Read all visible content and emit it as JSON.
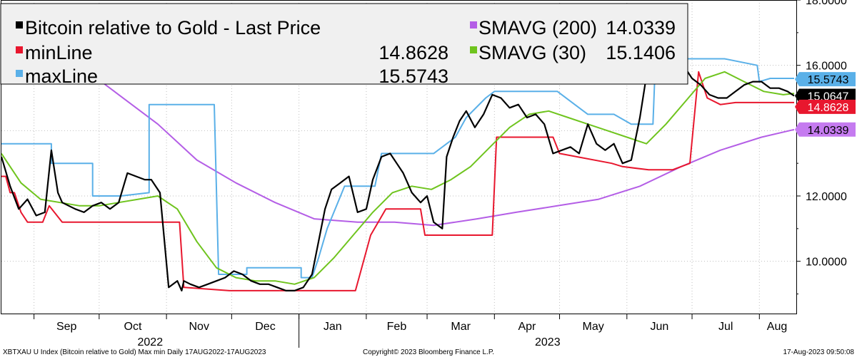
{
  "legend": {
    "items": [
      {
        "label": "Bitcoin relative to Gold - Last Price",
        "value": "",
        "color": "#000000"
      },
      {
        "label": "minLine",
        "value": "14.8628",
        "color": "#e8172e"
      },
      {
        "label": "maxLine",
        "value": "15.5743",
        "color": "#5ab0e8"
      },
      {
        "label": "SMAVG (200)",
        "value": "14.0339",
        "color": "#b45ee6"
      },
      {
        "label": "SMAVG (30)",
        "value": "15.1406",
        "color": "#6fc41e"
      }
    ]
  },
  "footer": {
    "left": "XBTXAU U Index (Bitcoin relative to Gold) Max min  Daily 17AUG2022-17AUG2023",
    "center": "Copyright© 2023 Bloomberg Finance L.P.",
    "right": "17-Aug-2023 09:50:08"
  },
  "chart_data": {
    "type": "line",
    "ylim": [
      8.4,
      18.0
    ],
    "y_ticks": [
      10,
      12,
      14,
      16,
      18
    ],
    "y_tick_labels": [
      "10.0000",
      "12.0000",
      "14.0000",
      "16.0000",
      "18.0000"
    ],
    "x_months": [
      "Sep",
      "Oct",
      "Nov",
      "Dec",
      "Jan",
      "Feb",
      "Mar",
      "Apr",
      "May",
      "Jun",
      "Jul",
      "Aug"
    ],
    "x_years": [
      "2022",
      "2023"
    ],
    "last_value_tags": [
      {
        "value": "15.5743",
        "level": 15.5743,
        "color": "#5ab0e8",
        "text_color": "#000000"
      },
      {
        "value": "15.0647",
        "level": 15.0647,
        "color": "#000000",
        "text_color": "#ffffff"
      },
      {
        "value": "14.8628",
        "level": 14.86,
        "color": "#e8172e",
        "text_color": "#ffffff"
      },
      {
        "value": "14.0339",
        "level": 14.0339,
        "color": "#c57bf0",
        "text_color": "#000000"
      }
    ],
    "grid": true,
    "grid_style": "dotted",
    "legend_position": "top-left",
    "series": [
      {
        "name": "Bitcoin relative to Gold - Last Price",
        "color": "#000000",
        "x": [
          "2022-08-17",
          "2022-08-21",
          "2022-08-25",
          "2022-08-29",
          "2022-09-02",
          "2022-09-06",
          "2022-09-09",
          "2022-09-12",
          "2022-09-14",
          "2022-09-17",
          "2022-09-20",
          "2022-09-24",
          "2022-09-28",
          "2022-10-02",
          "2022-10-06",
          "2022-10-10",
          "2022-10-14",
          "2022-10-18",
          "2022-10-22",
          "2022-10-25",
          "2022-10-29",
          "2022-11-02",
          "2022-11-06",
          "2022-11-08",
          "2022-11-09",
          "2022-11-12",
          "2022-11-16",
          "2022-11-20",
          "2022-11-24",
          "2022-11-28",
          "2022-12-02",
          "2022-12-06",
          "2022-12-10",
          "2022-12-14",
          "2022-12-18",
          "2022-12-22",
          "2022-12-26",
          "2022-12-30",
          "2023-01-03",
          "2023-01-07",
          "2023-01-10",
          "2023-01-13",
          "2023-01-16",
          "2023-01-20",
          "2023-01-24",
          "2023-01-28",
          "2023-02-01",
          "2023-02-04",
          "2023-02-08",
          "2023-02-12",
          "2023-02-15",
          "2023-02-18",
          "2023-02-22",
          "2023-02-26",
          "2023-03-01",
          "2023-03-04",
          "2023-03-08",
          "2023-03-10",
          "2023-03-13",
          "2023-03-16",
          "2023-03-19",
          "2023-03-23",
          "2023-03-27",
          "2023-03-31",
          "2023-04-04",
          "2023-04-08",
          "2023-04-12",
          "2023-04-16",
          "2023-04-20",
          "2023-04-24",
          "2023-04-28",
          "2023-05-02",
          "2023-05-06",
          "2023-05-10",
          "2023-05-14",
          "2023-05-18",
          "2023-05-22",
          "2023-05-26",
          "2023-05-30",
          "2023-06-03",
          "2023-06-07",
          "2023-06-11",
          "2023-06-15",
          "2023-06-19",
          "2023-06-23",
          "2023-06-27",
          "2023-07-01",
          "2023-07-05",
          "2023-07-09",
          "2023-07-13",
          "2023-07-17",
          "2023-07-21",
          "2023-07-25",
          "2023-07-29",
          "2023-08-02",
          "2023-08-06",
          "2023-08-10",
          "2023-08-14",
          "2023-08-17"
        ],
        "values": [
          13.2,
          12.3,
          11.6,
          11.9,
          11.4,
          11.5,
          13.4,
          12.1,
          11.8,
          11.7,
          11.6,
          11.5,
          11.7,
          11.8,
          11.6,
          11.8,
          12.7,
          12.6,
          12.5,
          12.5,
          12.1,
          9.2,
          9.4,
          9.1,
          9.4,
          9.3,
          9.2,
          9.3,
          9.4,
          9.5,
          9.7,
          9.6,
          9.4,
          9.3,
          9.3,
          9.2,
          9.1,
          9.1,
          9.2,
          9.6,
          10.6,
          11.6,
          12.2,
          12.4,
          12.6,
          11.5,
          11.6,
          12.5,
          13.2,
          13.3,
          13.0,
          12.7,
          12.1,
          11.8,
          12.0,
          11.2,
          11.0,
          13.2,
          13.8,
          14.3,
          14.6,
          14.1,
          14.5,
          15.1,
          15.0,
          14.7,
          14.8,
          14.4,
          14.5,
          14.2,
          13.3,
          13.4,
          13.5,
          13.3,
          14.2,
          13.6,
          13.4,
          13.6,
          13.0,
          13.1,
          14.4,
          16.1,
          15.8,
          15.9,
          16.1,
          16.0,
          15.6,
          15.4,
          15.1,
          15.0,
          15.0,
          15.2,
          15.4,
          15.5,
          15.5,
          15.3,
          15.3,
          15.2,
          15.0647
        ]
      },
      {
        "name": "minLine",
        "color": "#e8172e",
        "x": [
          "2022-08-17",
          "2022-08-19",
          "2022-08-21",
          "2022-08-23",
          "2022-08-26",
          "2022-08-29",
          "2022-09-05",
          "2022-09-08",
          "2022-09-14",
          "2022-09-22",
          "2022-10-21",
          "2022-11-01",
          "2022-11-07",
          "2022-11-09",
          "2022-11-30",
          "2022-12-31",
          "2023-01-27",
          "2023-02-03",
          "2023-02-10",
          "2023-02-22",
          "2023-02-26",
          "2023-02-28",
          "2023-03-10",
          "2023-03-31",
          "2023-04-02",
          "2023-04-28",
          "2023-05-01",
          "2023-05-25",
          "2023-05-30",
          "2023-06-11",
          "2023-06-22",
          "2023-06-30",
          "2023-07-04",
          "2023-07-08",
          "2023-07-14",
          "2023-07-21",
          "2023-08-17"
        ],
        "values": [
          12.6,
          12.6,
          12.1,
          12.1,
          11.5,
          11.2,
          11.2,
          11.7,
          11.2,
          11.2,
          11.2,
          11.2,
          11.2,
          9.2,
          9.1,
          9.1,
          9.1,
          10.8,
          11.6,
          11.6,
          11.6,
          10.8,
          10.8,
          10.8,
          13.8,
          13.8,
          13.3,
          13.0,
          12.9,
          12.8,
          12.8,
          13.0,
          15.8,
          15.0,
          14.8,
          14.86,
          14.86
        ]
      },
      {
        "name": "maxLine",
        "color": "#5ab0e8",
        "x": [
          "2022-08-17",
          "2022-09-09",
          "2022-09-09",
          "2022-09-28",
          "2022-09-28",
          "2022-10-11",
          "2022-10-24",
          "2022-10-24",
          "2022-11-23",
          "2022-11-25",
          "2022-11-25",
          "2022-12-08",
          "2022-12-08",
          "2023-01-02",
          "2023-01-02",
          "2023-01-07",
          "2023-01-10",
          "2023-01-14",
          "2023-01-22",
          "2023-02-05",
          "2023-02-08",
          "2023-03-04",
          "2023-03-14",
          "2023-03-19",
          "2023-03-28",
          "2023-04-01",
          "2023-04-30",
          "2023-05-08",
          "2023-05-14",
          "2023-05-26",
          "2023-06-03",
          "2023-06-13",
          "2023-06-14",
          "2023-06-20",
          "2023-06-22",
          "2023-06-24",
          "2023-07-16",
          "2023-07-31",
          "2023-08-01",
          "2023-08-06",
          "2023-08-17"
        ],
        "values": [
          13.6,
          13.6,
          13.0,
          13.0,
          12.0,
          12.0,
          12.1,
          14.8,
          14.8,
          9.6,
          9.6,
          9.6,
          9.8,
          9.8,
          9.5,
          9.5,
          10.1,
          11.0,
          12.3,
          12.3,
          13.3,
          13.3,
          13.8,
          14.4,
          15.0,
          15.2,
          15.2,
          14.8,
          14.5,
          14.5,
          14.2,
          14.2,
          15.9,
          15.9,
          16.1,
          16.2,
          16.2,
          16.0,
          15.5,
          15.6,
          15.6
        ]
      },
      {
        "name": "SMAVG (200)",
        "color": "#b45ee6",
        "x": [
          "2022-08-17",
          "2022-09-03",
          "2022-09-20",
          "2022-10-10",
          "2022-10-28",
          "2022-11-15",
          "2022-12-03",
          "2022-12-21",
          "2023-01-08",
          "2023-01-28",
          "2023-02-14",
          "2023-03-04",
          "2023-03-24",
          "2023-04-11",
          "2023-04-30",
          "2023-05-19",
          "2023-06-07",
          "2023-06-26",
          "2023-07-14",
          "2023-08-02",
          "2023-08-17"
        ],
        "values": [
          17.5,
          16.9,
          16.1,
          15.1,
          14.2,
          13.1,
          12.4,
          11.8,
          11.3,
          11.2,
          11.2,
          11.1,
          11.3,
          11.5,
          11.7,
          11.9,
          12.3,
          12.9,
          13.4,
          13.8,
          14.0339
        ]
      },
      {
        "name": "SMAVG (30)",
        "color": "#6fc41e",
        "x": [
          "2022-08-17",
          "2022-08-26",
          "2022-09-04",
          "2022-09-13",
          "2022-09-22",
          "2022-10-01",
          "2022-10-10",
          "2022-10-19",
          "2022-10-28",
          "2022-11-06",
          "2022-11-15",
          "2022-11-24",
          "2022-12-03",
          "2022-12-12",
          "2022-12-21",
          "2022-12-30",
          "2023-01-08",
          "2023-01-17",
          "2023-01-26",
          "2023-02-04",
          "2023-02-13",
          "2023-02-22",
          "2023-03-03",
          "2023-03-12",
          "2023-03-21",
          "2023-03-30",
          "2023-04-08",
          "2023-04-17",
          "2023-04-26",
          "2023-05-05",
          "2023-05-14",
          "2023-05-23",
          "2023-06-01",
          "2023-06-10",
          "2023-06-19",
          "2023-06-28",
          "2023-07-07",
          "2023-07-16",
          "2023-07-25",
          "2023-08-03",
          "2023-08-12",
          "2023-08-17"
        ],
        "values": [
          13.3,
          12.4,
          11.9,
          11.8,
          11.7,
          11.7,
          11.8,
          11.9,
          12.0,
          11.6,
          10.6,
          9.8,
          9.5,
          9.4,
          9.4,
          9.3,
          9.5,
          10.1,
          10.8,
          11.5,
          12.1,
          12.3,
          12.2,
          12.5,
          12.9,
          13.5,
          14.1,
          14.5,
          14.6,
          14.4,
          14.2,
          14.0,
          13.8,
          13.6,
          14.2,
          14.9,
          15.6,
          15.8,
          15.5,
          15.2,
          15.1,
          15.1406
        ]
      }
    ]
  }
}
